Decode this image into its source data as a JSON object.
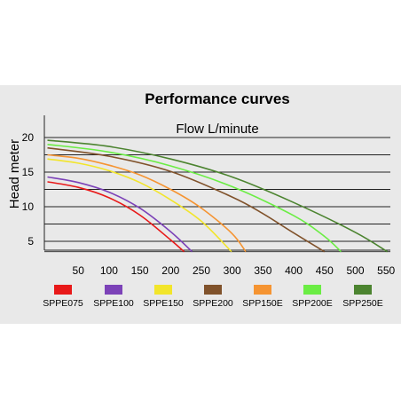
{
  "chart_data": {
    "type": "line",
    "title": "Performance curves",
    "subtitle": "Flow L/minute",
    "xlabel": "",
    "ylabel": "Head meter",
    "xlim": [
      0,
      560
    ],
    "ylim": [
      3.5,
      22.5
    ],
    "x_ticks": [
      50,
      100,
      150,
      200,
      250,
      300,
      350,
      400,
      450,
      500,
      550
    ],
    "y_ticks": [
      5,
      10,
      15,
      20
    ],
    "grid_y_values": [
      3.5,
      5,
      7.5,
      10,
      12.5,
      15,
      17.5,
      20
    ],
    "grid": "horizontal lines only",
    "legend_position": "bottom",
    "series": [
      {
        "name": "SPPE075",
        "color": "#e81919",
        "x": [
          0,
          50,
          100,
          150,
          200,
          222
        ],
        "y": [
          13.6,
          12.8,
          11.3,
          8.8,
          5.2,
          3.5
        ]
      },
      {
        "name": "SPPE100",
        "color": "#7c42b8",
        "x": [
          0,
          50,
          100,
          150,
          200,
          235
        ],
        "y": [
          14.3,
          13.5,
          12.1,
          9.8,
          6.4,
          3.5
        ]
      },
      {
        "name": "SPPE150",
        "color": "#f2e52b",
        "x": [
          0,
          50,
          100,
          150,
          200,
          250,
          299
        ],
        "y": [
          16.9,
          16.3,
          15.2,
          13.5,
          11.0,
          7.9,
          3.5
        ]
      },
      {
        "name": "SPPE200",
        "color": "#80522b",
        "x": [
          0,
          100,
          200,
          300,
          350,
          400,
          450
        ],
        "y": [
          18.5,
          17.3,
          15.1,
          11.4,
          9.0,
          6.2,
          3.5
        ]
      },
      {
        "name": "SPP150E",
        "color": "#f59432",
        "x": [
          0,
          50,
          100,
          150,
          200,
          250,
          300,
          322
        ],
        "y": [
          17.5,
          17.0,
          16.0,
          14.6,
          12.5,
          9.8,
          6.1,
          3.5
        ]
      },
      {
        "name": "SPP200E",
        "color": "#6bed44",
        "x": [
          0,
          100,
          200,
          300,
          400,
          450,
          477
        ],
        "y": [
          19.0,
          17.9,
          15.9,
          12.9,
          8.7,
          5.7,
          3.5
        ]
      },
      {
        "name": "SPP250E",
        "color": "#4c8430",
        "x": [
          0,
          100,
          200,
          300,
          400,
          500,
          552
        ],
        "y": [
          19.6,
          18.7,
          16.9,
          14.3,
          10.6,
          6.3,
          3.5
        ]
      }
    ]
  }
}
